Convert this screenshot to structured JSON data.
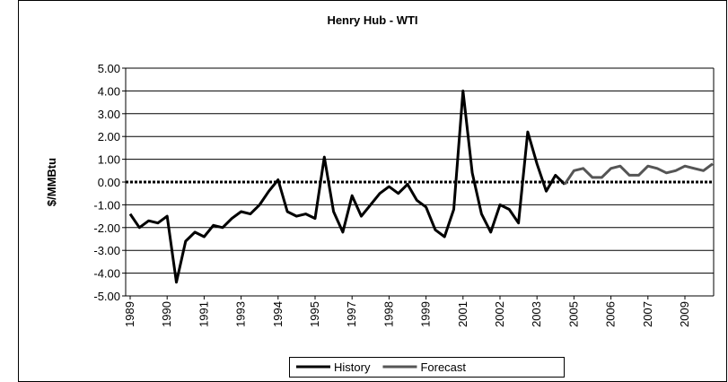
{
  "chart_data": {
    "type": "line",
    "title": "Henry Hub - WTI",
    "y_label": "$/MMBtu",
    "categories": [
      "1989",
      null,
      null,
      null,
      "1990",
      null,
      null,
      null,
      "1991",
      null,
      null,
      null,
      "1993",
      null,
      null,
      null,
      "1994",
      null,
      null,
      null,
      "1995",
      null,
      null,
      null,
      "1997",
      null,
      null,
      null,
      "1998",
      null,
      null,
      null,
      "1999",
      null,
      null,
      null,
      "2001",
      null,
      null,
      null,
      "2002",
      null,
      null,
      null,
      "2003",
      null,
      null,
      null,
      "2005",
      null,
      null,
      null,
      "2006",
      null,
      null,
      null,
      "2007",
      null,
      null,
      null,
      "2009",
      null,
      null,
      null
    ],
    "series": [
      {
        "name": "History",
        "color": "#000000",
        "values": [
          -1.4,
          -2.0,
          -1.7,
          -1.8,
          -1.5,
          -4.4,
          -2.6,
          -2.2,
          -2.4,
          -1.9,
          -2.0,
          -1.6,
          -1.3,
          -1.4,
          -1.0,
          -0.4,
          0.1,
          -1.3,
          -1.5,
          -1.4,
          -1.6,
          1.1,
          -1.3,
          -2.2,
          -0.6,
          -1.5,
          -1.0,
          -0.5,
          -0.2,
          -0.5,
          -0.1,
          -0.8,
          -1.1,
          -2.1,
          -2.4,
          -1.2,
          4.0,
          0.4,
          -1.4,
          -2.2,
          -1.0,
          -1.2,
          -1.8,
          2.2,
          0.8,
          -0.4,
          0.3,
          -0.1,
          null,
          null,
          null,
          null,
          null,
          null,
          null,
          null,
          null,
          null,
          null,
          null,
          null,
          null,
          null,
          null
        ]
      },
      {
        "name": "Forecast",
        "color": "#555555",
        "values": [
          null,
          null,
          null,
          null,
          null,
          null,
          null,
          null,
          null,
          null,
          null,
          null,
          null,
          null,
          null,
          null,
          null,
          null,
          null,
          null,
          null,
          null,
          null,
          null,
          null,
          null,
          null,
          null,
          null,
          null,
          null,
          null,
          null,
          null,
          null,
          null,
          null,
          null,
          null,
          null,
          null,
          null,
          null,
          null,
          null,
          null,
          null,
          -0.1,
          0.5,
          0.6,
          0.2,
          0.2,
          0.6,
          0.7,
          0.3,
          0.3,
          0.7,
          0.6,
          0.4,
          0.5,
          0.7,
          0.6,
          0.5,
          0.8
        ]
      }
    ],
    "ylim": [
      -5,
      5
    ],
    "yticks": [
      {
        "value": -5,
        "label": "-5.00"
      },
      {
        "value": -4,
        "label": "-4.00"
      },
      {
        "value": -3,
        "label": "-3.00"
      },
      {
        "value": -2,
        "label": "-2.00"
      },
      {
        "value": -1,
        "label": "-1.00"
      },
      {
        "value": 0,
        "label": "0.00"
      },
      {
        "value": 1,
        "label": "1.00"
      },
      {
        "value": 2,
        "label": "2.00"
      },
      {
        "value": 3,
        "label": "3.00"
      },
      {
        "value": 4,
        "label": "4.00"
      },
      {
        "value": 5,
        "label": "5.00"
      }
    ],
    "grid": true,
    "legend": "bottom"
  }
}
